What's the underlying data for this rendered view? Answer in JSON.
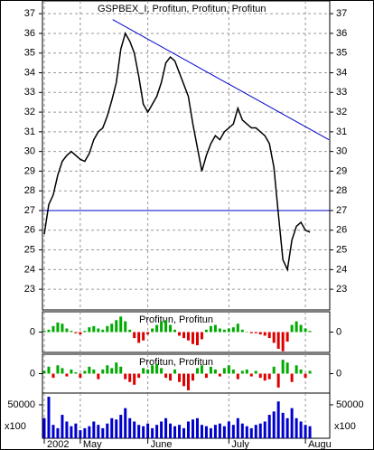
{
  "chart_data": [
    {
      "type": "line",
      "title": "GSPBEX_I, Profitun, Profitun, Profitun",
      "categories": [
        "2002",
        null,
        null,
        null,
        null,
        null,
        null,
        null,
        "May",
        null,
        null,
        null,
        null,
        null,
        null,
        null,
        null,
        null,
        null,
        null,
        null,
        null,
        null,
        "June",
        null,
        null,
        null,
        null,
        null,
        null,
        null,
        null,
        null,
        null,
        null,
        null,
        null,
        null,
        null,
        null,
        null,
        "July",
        null,
        null,
        null,
        null,
        null,
        null,
        null,
        null,
        null,
        null,
        null,
        null,
        null,
        null,
        null,
        null,
        "Augu",
        null
      ],
      "values": [
        25.8,
        27.3,
        27.8,
        28.8,
        29.5,
        29.8,
        30.0,
        29.8,
        29.6,
        29.5,
        29.9,
        30.6,
        31.0,
        31.2,
        31.8,
        32.6,
        33.5,
        35.2,
        36.0,
        35.6,
        35.0,
        33.8,
        32.4,
        32.0,
        32.4,
        32.8,
        33.5,
        34.5,
        34.8,
        34.6,
        34.0,
        33.4,
        32.8,
        31.4,
        30.2,
        29.0,
        29.8,
        30.4,
        30.8,
        30.6,
        31.0,
        31.2,
        31.4,
        32.2,
        31.6,
        31.4,
        31.2,
        31.2,
        31.0,
        30.8,
        30.4,
        29.2,
        26.8,
        24.5,
        24.0,
        25.5,
        26.2,
        26.4,
        26.0,
        25.9
      ],
      "color": "#000000",
      "xlim": [
        -0.4,
        63.4
      ],
      "ylim": [
        21.95,
        37.65
      ],
      "yticks": [
        23,
        24,
        25,
        26,
        27,
        28,
        29,
        30,
        31,
        32,
        33,
        34,
        35,
        36,
        37
      ],
      "hline": 27,
      "trendline": {
        "x": [
          15.2,
          63.2
        ],
        "y": [
          36.7,
          30.6
        ]
      },
      "line_color": "#0000cc",
      "grid": true
    },
    {
      "type": "bar",
      "title": "Profitun, Profitun",
      "values": [
        0.1,
        0.2,
        0.5,
        0.8,
        0.7,
        0.3,
        0.1,
        -0.1,
        -0.2,
        0.1,
        0.4,
        0.5,
        0.3,
        0.2,
        0.5,
        0.7,
        1.0,
        1.3,
        0.9,
        0.2,
        -0.5,
        -0.9,
        -0.7,
        -0.2,
        0.3,
        0.6,
        0.9,
        1.0,
        0.6,
        0.2,
        -0.3,
        -0.5,
        -0.7,
        -1.0,
        -1.1,
        -0.6,
        0.2,
        0.5,
        0.6,
        0.3,
        0.2,
        0.3,
        0.4,
        0.7,
        0.2,
        0.0,
        -0.1,
        -0.1,
        -0.2,
        -0.3,
        -0.5,
        -0.9,
        -1.4,
        -1.6,
        -0.8,
        0.6,
        0.9,
        0.6,
        0.3,
        0.1
      ],
      "pos_color": "#00aa00",
      "neg_color": "#dd0000",
      "ylim": [
        -1.7,
        1.7
      ],
      "yticks": [
        0
      ]
    },
    {
      "type": "bar",
      "title": "Profitun, Profitun",
      "values": [
        0.2,
        0.5,
        -0.3,
        0.6,
        0.4,
        -0.2,
        0.3,
        0.1,
        -0.3,
        0.2,
        0.5,
        0.3,
        -0.4,
        0.3,
        0.6,
        0.4,
        0.8,
        0.5,
        -0.4,
        -0.6,
        -0.8,
        -0.3,
        0.4,
        0.3,
        0.6,
        0.7,
        0.4,
        -0.3,
        -0.5,
        0.3,
        -0.6,
        -0.9,
        -1.2,
        -0.5,
        0.4,
        0.6,
        -0.3,
        0.5,
        0.3,
        -0.2,
        0.4,
        0.6,
        0.3,
        -0.4,
        0.2,
        0.3,
        -0.2,
        0.2,
        -0.3,
        -0.5,
        -0.4,
        0.5,
        -1.0,
        1.0,
        0.8,
        -0.6,
        0.6,
        0.3,
        -0.3,
        0.2
      ],
      "pos_color": "#00aa00",
      "neg_color": "#dd0000",
      "ylim": [
        -1.4,
        1.4
      ],
      "yticks": [
        0
      ]
    },
    {
      "type": "bar",
      "unit_label": "x100",
      "values": [
        30000,
        62000,
        20000,
        15000,
        35000,
        25000,
        18000,
        22000,
        12000,
        15000,
        18000,
        25000,
        20000,
        15000,
        22000,
        30000,
        28000,
        35000,
        45000,
        30000,
        25000,
        20000,
        18000,
        22000,
        15000,
        20000,
        25000,
        30000,
        22000,
        18000,
        20000,
        15000,
        25000,
        28000,
        30000,
        20000,
        18000,
        15000,
        20000,
        22000,
        18000,
        25000,
        20000,
        30000,
        22000,
        18000,
        15000,
        20000,
        22000,
        25000,
        35000,
        40000,
        55000,
        38000,
        30000,
        45000,
        30000,
        25000,
        20000,
        18000
      ],
      "pos_color": "#0000cc",
      "neg_color": "#0000cc",
      "ylim": [
        0,
        67500
      ],
      "yticks": [
        50000
      ]
    }
  ]
}
